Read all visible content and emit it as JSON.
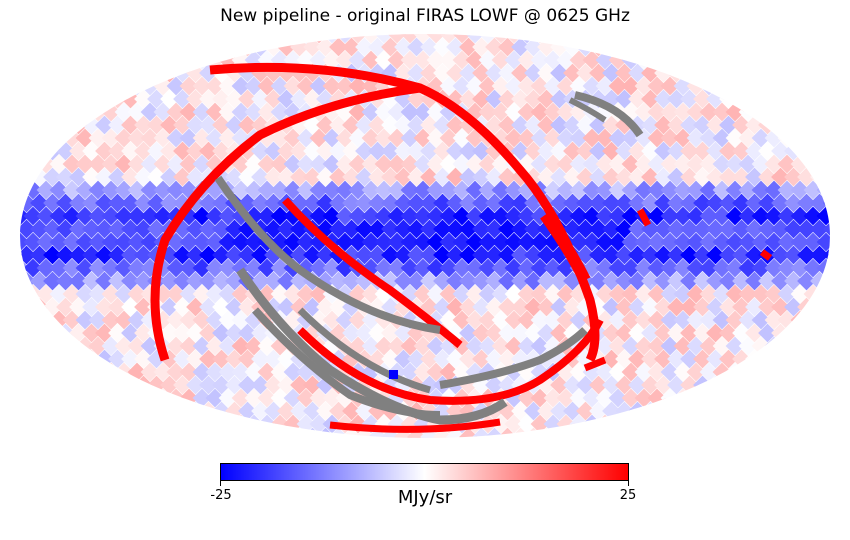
{
  "title": "New pipeline - original FIRAS LOWF @ 0625 GHz",
  "colorbar": {
    "min_label": "-25",
    "max_label": "25",
    "unit": "MJy/sr",
    "min": -25,
    "max": 25,
    "colors": {
      "low": "#0000ff",
      "mid": "#ffffff",
      "high": "#ff0000",
      "masked": "#808080"
    }
  }
}
